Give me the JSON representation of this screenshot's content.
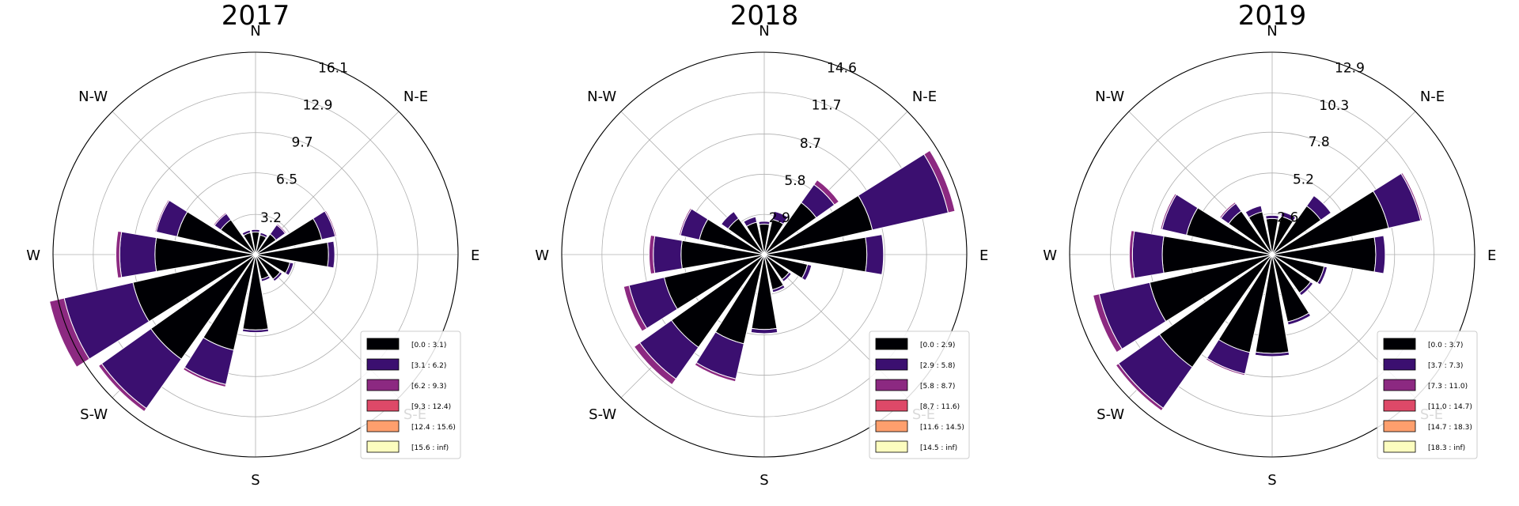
{
  "bin_colors": [
    "#000004",
    "#3b0f70",
    "#8c2981",
    "#de4968",
    "#fe9f6d",
    "#fcfdbf"
  ],
  "chart_data": [
    {
      "type": "windrose",
      "title": "2017",
      "direction_labels": [
        "N",
        "N-E",
        "E",
        "S-E",
        "S",
        "S-W",
        "W",
        "N-W"
      ],
      "sector_directions_deg": [
        0,
        22.5,
        45,
        67.5,
        90,
        112.5,
        135,
        157.5,
        180,
        202.5,
        225,
        247.5,
        270,
        292.5,
        315,
        337.5
      ],
      "rmax": 16.1,
      "ring_values": [
        3.2,
        6.5,
        9.7,
        12.9,
        16.1
      ],
      "ring_labels": [
        "3.2",
        "6.5",
        "9.7",
        "12.9",
        "16.1"
      ],
      "legend": [
        "[0.0 : 3.1)",
        "[3.1 : 6.2)",
        "[6.2 : 9.3)",
        "[9.3 : 12.4)",
        "[12.4 : 15.6)",
        "[15.6 : inf)"
      ],
      "legend_location": "lower-right",
      "sectors": [
        [
          1.8,
          0.2,
          0,
          0,
          0,
          0
        ],
        [
          1.6,
          0.2,
          0,
          0,
          0,
          0
        ],
        [
          2.0,
          0.9,
          0.1,
          0,
          0,
          0
        ],
        [
          5.4,
          1.1,
          0.1,
          0,
          0,
          0
        ],
        [
          5.8,
          0.5,
          0,
          0,
          0,
          0
        ],
        [
          2.8,
          0.3,
          0,
          0,
          0,
          0
        ],
        [
          2.4,
          0.2,
          0,
          0,
          0,
          0
        ],
        [
          2.0,
          0.2,
          0,
          0,
          0,
          0
        ],
        [
          6.0,
          0.2,
          0,
          0,
          0,
          0
        ],
        [
          7.8,
          2.8,
          0.2,
          0,
          0,
          0
        ],
        [
          10.2,
          4.8,
          0.3,
          0,
          0,
          0
        ],
        [
          10.0,
          5.6,
          1.2,
          0,
          0,
          0
        ],
        [
          8.0,
          2.8,
          0.3,
          0,
          0,
          0
        ],
        [
          6.4,
          1.7,
          0.1,
          0,
          0,
          0
        ],
        [
          3.4,
          0.6,
          0.1,
          0,
          0,
          0
        ],
        [
          1.8,
          0.2,
          0,
          0,
          0,
          0
        ]
      ]
    },
    {
      "type": "windrose",
      "title": "2018",
      "direction_labels": [
        "N",
        "N-E",
        "E",
        "S-E",
        "S",
        "S-W",
        "W",
        "N-W"
      ],
      "sector_directions_deg": [
        0,
        22.5,
        45,
        67.5,
        90,
        112.5,
        135,
        157.5,
        180,
        202.5,
        225,
        247.5,
        270,
        292.5,
        315,
        337.5
      ],
      "rmax": 14.6,
      "ring_values": [
        2.9,
        5.8,
        8.7,
        11.7,
        14.6
      ],
      "ring_labels": [
        "2.9",
        "5.8",
        "8.7",
        "11.7",
        "14.6"
      ],
      "legend": [
        "[0.0 : 2.9)",
        "[2.9 : 5.8)",
        "[5.8 : 8.7)",
        "[8.7 : 11.6)",
        "[11.6 : 14.5)",
        "[14.5 : inf)"
      ],
      "legend_location": "lower-right",
      "sectors": [
        [
          2.2,
          0.2,
          0,
          0,
          0,
          0
        ],
        [
          2.6,
          0.6,
          0,
          0,
          0,
          0
        ],
        [
          4.6,
          1.6,
          0.4,
          0,
          0,
          0
        ],
        [
          8.0,
          5.6,
          0.5,
          0,
          0,
          0
        ],
        [
          7.4,
          1.2,
          0,
          0,
          0,
          0
        ],
        [
          3.2,
          0.3,
          0,
          0,
          0,
          0
        ],
        [
          2.2,
          0.2,
          0,
          0,
          0,
          0
        ],
        [
          2.6,
          0.2,
          0,
          0,
          0,
          0
        ],
        [
          5.4,
          0.3,
          0,
          0,
          0,
          0
        ],
        [
          6.6,
          2.6,
          0.2,
          0,
          0,
          0
        ],
        [
          8.2,
          2.8,
          0.5,
          0,
          0,
          0
        ],
        [
          7.4,
          2.6,
          0.4,
          0,
          0,
          0
        ],
        [
          6.0,
          2.0,
          0.3,
          0,
          0,
          0
        ],
        [
          4.8,
          1.4,
          0.1,
          0,
          0,
          0
        ],
        [
          3.2,
          0.6,
          0,
          0,
          0,
          0
        ],
        [
          2.4,
          0.4,
          0,
          0,
          0,
          0
        ]
      ]
    },
    {
      "type": "windrose",
      "title": "2019",
      "direction_labels": [
        "N",
        "N-E",
        "E",
        "S-E",
        "S",
        "S-W",
        "W",
        "N-W"
      ],
      "sector_directions_deg": [
        0,
        22.5,
        45,
        67.5,
        90,
        112.5,
        135,
        157.5,
        180,
        202.5,
        225,
        247.5,
        270,
        292.5,
        315,
        337.5
      ],
      "rmax": 12.9,
      "ring_values": [
        2.6,
        5.2,
        7.8,
        10.3,
        12.9
      ],
      "ring_labels": [
        "2.6",
        "5.2",
        "7.8",
        "10.3",
        "12.9"
      ],
      "legend": [
        "[0.0 : 3.7)",
        "[3.7 : 7.3)",
        "[7.3 : 11.0)",
        "[11.0 : 14.7)",
        "[14.7 : 18.3)",
        "[18.3 : inf)"
      ],
      "legend_location": "lower-right",
      "sectors": [
        [
          2.3,
          0.2,
          0,
          0,
          0,
          0
        ],
        [
          2.5,
          0.3,
          0,
          0,
          0,
          0
        ],
        [
          3.8,
          0.8,
          0,
          0,
          0,
          0
        ],
        [
          7.6,
          2.1,
          0.1,
          0,
          0,
          0
        ],
        [
          6.6,
          0.6,
          0,
          0,
          0,
          0
        ],
        [
          3.4,
          0.2,
          0,
          0,
          0,
          0
        ],
        [
          3.0,
          0.2,
          0,
          0,
          0,
          0
        ],
        [
          4.4,
          0.2,
          0,
          0,
          0,
          0
        ],
        [
          6.3,
          0.2,
          0,
          0,
          0,
          0
        ],
        [
          6.4,
          1.4,
          0.1,
          0,
          0,
          0
        ],
        [
          8.8,
          3.2,
          0.2,
          0,
          0,
          0
        ],
        [
          8.0,
          3.3,
          0.4,
          0,
          0,
          0
        ],
        [
          7.0,
          1.9,
          0.2,
          0,
          0,
          0
        ],
        [
          5.6,
          1.6,
          0.1,
          0,
          0,
          0
        ],
        [
          3.4,
          0.6,
          0.1,
          0,
          0,
          0
        ],
        [
          2.8,
          0.4,
          0,
          0,
          0,
          0
        ]
      ]
    }
  ]
}
